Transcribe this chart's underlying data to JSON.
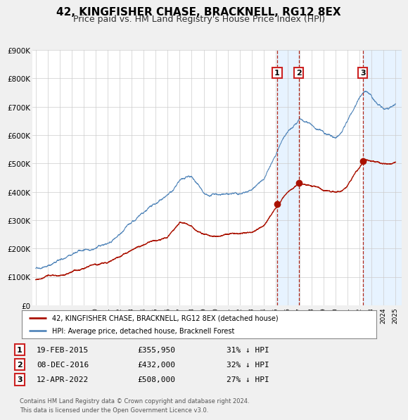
{
  "title": "42, KINGFISHER CHASE, BRACKNELL, RG12 8EX",
  "subtitle": "Price paid vs. HM Land Registry's House Price Index (HPI)",
  "title_fontsize": 11,
  "subtitle_fontsize": 9,
  "hpi_color": "#5588bb",
  "hpi_span_color": "#ddeeff",
  "price_color": "#aa1100",
  "background_color": "#f0f0f0",
  "plot_bg_color": "#ffffff",
  "grid_color": "#cccccc",
  "ylim": [
    0,
    900000
  ],
  "xmin": 1994.7,
  "xmax": 2025.5,
  "yticks": [
    0,
    100000,
    200000,
    300000,
    400000,
    500000,
    600000,
    700000,
    800000,
    900000
  ],
  "ytick_labels": [
    "£0",
    "£100K",
    "£200K",
    "£300K",
    "£400K",
    "£500K",
    "£600K",
    "£700K",
    "£800K",
    "£900K"
  ],
  "xticks": [
    1995,
    1996,
    1997,
    1998,
    1999,
    2000,
    2001,
    2002,
    2003,
    2004,
    2005,
    2006,
    2007,
    2008,
    2009,
    2010,
    2011,
    2012,
    2013,
    2014,
    2015,
    2016,
    2017,
    2018,
    2019,
    2020,
    2021,
    2022,
    2023,
    2024,
    2025
  ],
  "sale_dates": [
    2015.128,
    2016.927,
    2022.278
  ],
  "sale_prices": [
    355950,
    432000,
    508000
  ],
  "sale_labels": [
    "1",
    "2",
    "3"
  ],
  "sale_date_labels": [
    "19-FEB-2015",
    "08-DEC-2016",
    "12-APR-2022"
  ],
  "sale_price_labels": [
    "£355,950",
    "£432,000",
    "£508,000"
  ],
  "sale_hpi_labels": [
    "31% ↓ HPI",
    "32% ↓ HPI",
    "27% ↓ HPI"
  ],
  "legend_label_price": "42, KINGFISHER CHASE, BRACKNELL, RG12 8EX (detached house)",
  "legend_label_hpi": "HPI: Average price, detached house, Bracknell Forest",
  "footer": "Contains HM Land Registry data © Crown copyright and database right 2024.\nThis data is licensed under the Open Government Licence v3.0."
}
